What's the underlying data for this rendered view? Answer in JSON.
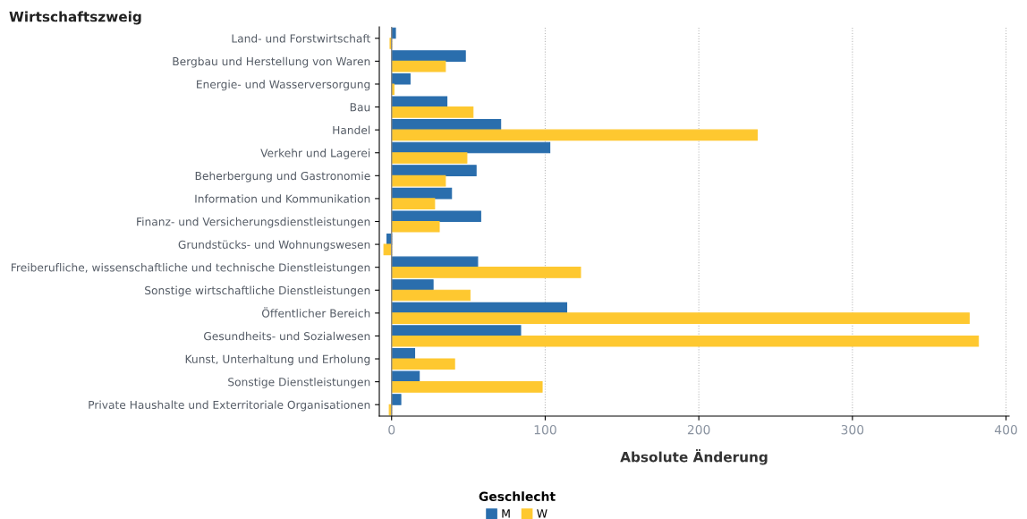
{
  "chart_data": {
    "type": "bar",
    "orientation": "horizontal",
    "ylabel": "Wirtschaftszweig",
    "xlabel": "Absolute Änderung",
    "legend_title": "Geschlecht",
    "categories": [
      "Land- und Forstwirtschaft",
      "Bergbau und Herstellung von Waren",
      "Energie- und Wasserversorgung",
      "Bau",
      "Handel",
      "Verkehr und Lagerei",
      "Beherbergung und Gastronomie",
      "Information und Kommunikation",
      "Finanz- und Versicherungsdienstleistungen",
      "Grundstücks- und Wohnungswesen",
      "Freiberufliche, wissenschaftliche und technische Dienstleistungen",
      "Sonstige wirtschaftliche Dienstleistungen",
      "Öffentlicher Bereich",
      "Gesundheits- und Sozialwesen",
      "Kunst, Unterhaltung und Erholung",
      "Sonstige Dienstleistungen",
      "Private Haushalte und Exterritoriale Organisationen"
    ],
    "series": [
      {
        "name": "M",
        "color": "#2a6ead",
        "values": [
          2.5,
          48,
          12,
          36,
          71,
          103,
          55,
          39,
          58,
          -3,
          56,
          27,
          114,
          84,
          15,
          18,
          6
        ]
      },
      {
        "name": "W",
        "color": "#fec830",
        "values": [
          -1,
          35,
          1.5,
          53,
          238,
          49,
          35,
          28,
          31,
          -5,
          123,
          51,
          376,
          382,
          41,
          98,
          -1.5
        ]
      }
    ],
    "xlim": [
      -8,
      402
    ],
    "xticks": [
      0,
      100,
      200,
      300,
      400
    ],
    "grid": "x",
    "legend": "bottom"
  }
}
